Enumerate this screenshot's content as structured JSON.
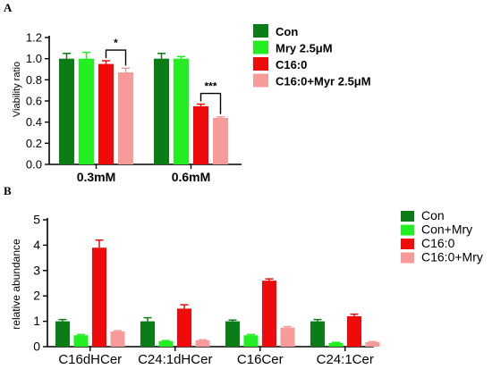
{
  "chart_data": [
    {
      "panel": "A",
      "type": "bar",
      "categories": [
        "0.3mM",
        "0.6mM"
      ],
      "series": [
        {
          "name": "Con",
          "color": "#0b7d16",
          "values": [
            1.0,
            1.0
          ],
          "errors": [
            0.05,
            0.05
          ]
        },
        {
          "name": "Mry 2.5μM",
          "color": "#22ee22",
          "values": [
            1.0,
            1.0
          ],
          "errors": [
            0.06,
            0.02
          ]
        },
        {
          "name": "C16:0",
          "color": "#ef0b0b",
          "values": [
            0.95,
            0.55
          ],
          "errors": [
            0.03,
            0.02
          ]
        },
        {
          "name": "C16:0+Myr 2.5μM",
          "color": "#f79a9a",
          "values": [
            0.87,
            0.44
          ],
          "errors": [
            0.04,
            0.01
          ]
        }
      ],
      "ylabel": "Viability ratio",
      "ylim": [
        0,
        1.2
      ],
      "yticks": [
        "0.0",
        "0.2",
        "0.4",
        "0.6",
        "0.8",
        "1.0",
        "1.2"
      ],
      "yticks_values": [
        0,
        0.2,
        0.4,
        0.6,
        0.8,
        1.0,
        1.2
      ],
      "annotations": [
        {
          "text": "*",
          "category_index": 0,
          "series_from": 2,
          "series_to": 3
        },
        {
          "text": "***",
          "category_index": 1,
          "series_from": 2,
          "series_to": 3
        }
      ],
      "legend_position": "right"
    },
    {
      "panel": "B",
      "type": "bar",
      "categories": [
        "C16dHCer",
        "C24:1dHCer",
        "C16Cer",
        "C24:1Cer"
      ],
      "series": [
        {
          "name": "Con",
          "color": "#0b7d16",
          "values": [
            1.0,
            1.0,
            1.0,
            1.0
          ],
          "errors": [
            0.07,
            0.14,
            0.05,
            0.07
          ]
        },
        {
          "name": "Con+Mry",
          "color": "#22ee22",
          "values": [
            0.45,
            0.22,
            0.45,
            0.15
          ],
          "errors": [
            0.03,
            0.02,
            0.03,
            0.02
          ]
        },
        {
          "name": "C16:0",
          "color": "#ef0b0b",
          "values": [
            3.9,
            1.5,
            2.6,
            1.2
          ],
          "errors": [
            0.3,
            0.15,
            0.07,
            0.08
          ]
        },
        {
          "name": "C16:0+Mry",
          "color": "#f79a9a",
          "values": [
            0.6,
            0.25,
            0.75,
            0.18
          ],
          "errors": [
            0.03,
            0.02,
            0.04,
            0.02
          ]
        }
      ],
      "ylabel": "relative abundance",
      "ylim": [
        0,
        5
      ],
      "yticks": [
        "0",
        "1",
        "2",
        "3",
        "4",
        "5"
      ],
      "yticks_values": [
        0,
        1,
        2,
        3,
        4,
        5
      ],
      "legend_position": "right"
    }
  ]
}
